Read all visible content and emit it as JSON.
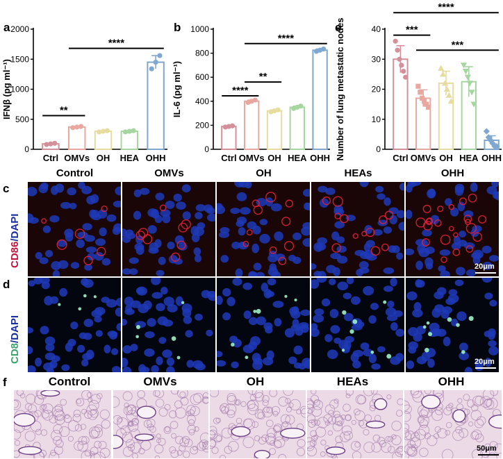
{
  "panel_letters": {
    "a": "a",
    "b": "b",
    "c": "c",
    "d": "d",
    "e": "e",
    "f": "f"
  },
  "chart_data": [
    {
      "type": "bar",
      "id": "a",
      "categories": [
        "Ctrl",
        "OMVs",
        "OH",
        "HEA",
        "OHH"
      ],
      "values": [
        90,
        370,
        300,
        300,
        1450
      ],
      "points": [
        [
          80,
          90,
          100
        ],
        [
          360,
          370,
          380
        ],
        [
          290,
          300,
          310
        ],
        [
          290,
          300,
          310
        ],
        [
          1340,
          1450,
          1560
        ]
      ],
      "colors": [
        "#d4909a",
        "#e8a8a0",
        "#e6dca0",
        "#a6d6a0",
        "#7fa8d0"
      ],
      "ylabel": "IFNβ (pg ml⁻¹)",
      "ylim": [
        0,
        2000
      ],
      "yticks": [
        "0",
        "500",
        "1000",
        "1500",
        "2000"
      ],
      "ytick_values": [
        0,
        500,
        1000,
        1500,
        2000
      ],
      "significance": [
        {
          "from": 0,
          "to": 1,
          "label": "**",
          "y": 560
        },
        {
          "from": 1,
          "to": 4,
          "label": "****",
          "y": 1680
        }
      ]
    },
    {
      "type": "bar",
      "id": "b",
      "categories": [
        "Ctrl",
        "OMVs",
        "OH",
        "HEA",
        "OHH"
      ],
      "values": [
        190,
        400,
        320,
        350,
        825
      ],
      "points": [
        [
          185,
          190,
          195
        ],
        [
          390,
          400,
          410
        ],
        [
          312,
          320,
          328
        ],
        [
          340,
          350,
          360
        ],
        [
          815,
          825,
          835
        ]
      ],
      "colors": [
        "#d4909a",
        "#e8a8a0",
        "#e6dca0",
        "#a6d6a0",
        "#7fa8d0"
      ],
      "ylabel": "IL-6 (pg ml⁻¹)",
      "ylim": [
        0,
        1000
      ],
      "yticks": [
        "0",
        "200",
        "400",
        "600",
        "800",
        "1000"
      ],
      "ytick_values": [
        0,
        200,
        400,
        600,
        800,
        1000
      ],
      "significance": [
        {
          "from": 0,
          "to": 1,
          "label": "****",
          "y": 445
        },
        {
          "from": 1,
          "to": 2,
          "label": "**",
          "y": 560
        },
        {
          "from": 1,
          "to": 4,
          "label": "****",
          "y": 880
        }
      ]
    },
    {
      "type": "bar",
      "id": "e",
      "categories": [
        "Ctrl",
        "OMVs",
        "OH",
        "HEA",
        "OHH"
      ],
      "values": [
        30,
        17,
        22,
        22.5,
        3
      ],
      "errors": [
        4.5,
        2.8,
        4.0,
        5.0,
        1.5
      ],
      "points": [
        [
          36,
          33,
          30,
          28,
          26,
          24
        ],
        [
          21,
          19,
          17,
          16,
          15,
          14
        ],
        [
          27,
          25,
          22,
          20,
          18,
          16
        ],
        [
          28,
          26,
          24,
          22,
          19,
          15
        ],
        [
          6,
          4,
          3,
          2,
          1,
          1
        ]
      ],
      "markers": [
        "circle",
        "square",
        "triangle",
        "triangle-down",
        "diamond"
      ],
      "colors": [
        "#d4909a",
        "#e8a8a0",
        "#e6dca0",
        "#a6d6a0",
        "#7fa8d0"
      ],
      "ylabel": "Number of lung metastatic nodes",
      "ylim": [
        0,
        40
      ],
      "yticks": [
        "0",
        "10",
        "20",
        "30",
        "40"
      ],
      "ytick_values": [
        0,
        10,
        20,
        30,
        40
      ],
      "significance": [
        {
          "from": 0,
          "to": 1,
          "label": "***",
          "y": 38
        },
        {
          "from": 1,
          "to": 4,
          "label": "***",
          "y": 33
        },
        {
          "from": 0,
          "to": 4,
          "label": "****",
          "y": 45.5
        }
      ]
    }
  ],
  "row_titles": [
    "Control",
    "OMVs",
    "OH",
    "HEAs",
    "OHH"
  ],
  "row_f_titles": [
    "Control",
    "OMVs",
    "OH",
    "HEAs",
    "OHH"
  ],
  "stain_c": {
    "part1": "CD86",
    "part2": "/DAPI"
  },
  "stain_d": {
    "part1": "CD8",
    "part2": "/DAPI"
  },
  "scale_c": "20μm",
  "scale_d": "20μm",
  "scale_f": "50μm",
  "colors": {
    "c_red": "#c0143c",
    "d_green": "#3aa36c",
    "dapi_blue": "#1b2e9e"
  }
}
